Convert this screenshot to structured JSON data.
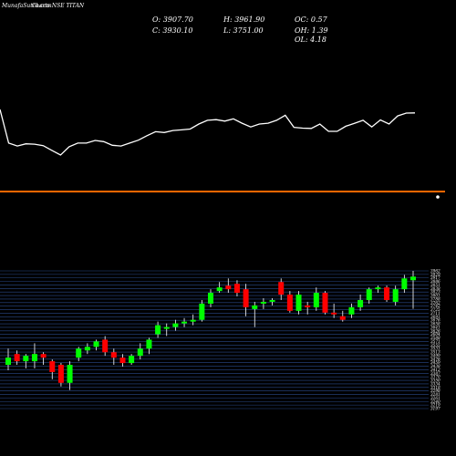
{
  "header": {
    "brand": "MunafaSutra.com",
    "title": "Charts NSE TITAN",
    "open": "O: 3907.70",
    "high": "H: 3961.90",
    "oc": "OC: 0.57",
    "close": "C: 3930.10",
    "low": "L: 3751.00",
    "oh": "OH: 1.39",
    "ol": "OL: 4.18"
  },
  "colors": {
    "background": "#000000",
    "line": "#ffffff",
    "separator": "#ff6600",
    "bullish": "#00ff00",
    "bearish": "#ff0000",
    "grid": "#2a4a8a"
  },
  "chart_data": [
    {
      "type": "line",
      "title": "",
      "values": [
        3420,
        3190,
        3170,
        3185,
        3182,
        3172,
        3140,
        3108,
        3165,
        3190,
        3190,
        3208,
        3200,
        3175,
        3170,
        3190,
        3210,
        3240,
        3268,
        3262,
        3276,
        3280,
        3286,
        3320,
        3346,
        3350,
        3340,
        3356,
        3326,
        3300,
        3320,
        3326,
        3346,
        3380,
        3298,
        3292,
        3290,
        3320,
        3270,
        3270,
        3305,
        3325,
        3346,
        3300,
        3348,
        3320,
        3376,
        3395,
        3396
      ]
    },
    {
      "type": "candlestick",
      "title": "",
      "y_tick_labels": [
        "3962",
        "3929",
        "3917",
        "3886",
        "3851",
        "3838",
        "3823",
        "3801",
        "3788",
        "3762",
        "3742",
        "3725",
        "3711",
        "3691",
        "3676",
        "3658",
        "3641",
        "3626",
        "3604",
        "3588",
        "3571",
        "3555",
        "3531",
        "3513",
        "3499",
        "3476",
        "3459",
        "3438",
        "3412",
        "3387",
        "3370",
        "3350",
        "3334",
        "3318",
        "3298",
        "3281",
        "3261",
        "3240",
        "3219",
        "3197"
      ],
      "candles": [
        {
          "o": 3440,
          "h": 3530,
          "l": 3410,
          "c": 3480
        },
        {
          "o": 3500,
          "h": 3520,
          "l": 3440,
          "c": 3460
        },
        {
          "o": 3460,
          "h": 3500,
          "l": 3420,
          "c": 3490
        },
        {
          "o": 3460,
          "h": 3560,
          "l": 3420,
          "c": 3500
        },
        {
          "o": 3500,
          "h": 3510,
          "l": 3440,
          "c": 3480
        },
        {
          "o": 3460,
          "h": 3470,
          "l": 3360,
          "c": 3400
        },
        {
          "o": 3440,
          "h": 3450,
          "l": 3320,
          "c": 3340
        },
        {
          "o": 3340,
          "h": 3460,
          "l": 3300,
          "c": 3440
        },
        {
          "o": 3480,
          "h": 3540,
          "l": 3460,
          "c": 3530
        },
        {
          "o": 3520,
          "h": 3560,
          "l": 3500,
          "c": 3540
        },
        {
          "o": 3540,
          "h": 3580,
          "l": 3520,
          "c": 3570
        },
        {
          "o": 3580,
          "h": 3600,
          "l": 3490,
          "c": 3510
        },
        {
          "o": 3510,
          "h": 3530,
          "l": 3440,
          "c": 3480
        },
        {
          "o": 3480,
          "h": 3500,
          "l": 3430,
          "c": 3450
        },
        {
          "o": 3450,
          "h": 3500,
          "l": 3440,
          "c": 3490
        },
        {
          "o": 3490,
          "h": 3560,
          "l": 3470,
          "c": 3530
        },
        {
          "o": 3530,
          "h": 3590,
          "l": 3500,
          "c": 3580
        },
        {
          "o": 3610,
          "h": 3680,
          "l": 3590,
          "c": 3660
        },
        {
          "o": 3640,
          "h": 3670,
          "l": 3600,
          "c": 3650
        },
        {
          "o": 3650,
          "h": 3690,
          "l": 3630,
          "c": 3670
        },
        {
          "o": 3670,
          "h": 3700,
          "l": 3650,
          "c": 3680
        },
        {
          "o": 3680,
          "h": 3720,
          "l": 3660,
          "c": 3690
        },
        {
          "o": 3690,
          "h": 3800,
          "l": 3680,
          "c": 3780
        },
        {
          "o": 3780,
          "h": 3860,
          "l": 3760,
          "c": 3840
        },
        {
          "o": 3850,
          "h": 3900,
          "l": 3840,
          "c": 3870
        },
        {
          "o": 3880,
          "h": 3920,
          "l": 3840,
          "c": 3860
        },
        {
          "o": 3890,
          "h": 3910,
          "l": 3820,
          "c": 3840
        },
        {
          "o": 3860,
          "h": 3890,
          "l": 3710,
          "c": 3760
        },
        {
          "o": 3750,
          "h": 3790,
          "l": 3650,
          "c": 3770
        },
        {
          "o": 3780,
          "h": 3810,
          "l": 3750,
          "c": 3790
        },
        {
          "o": 3790,
          "h": 3810,
          "l": 3770,
          "c": 3800
        },
        {
          "o": 3900,
          "h": 3920,
          "l": 3800,
          "c": 3830
        },
        {
          "o": 3830,
          "h": 3850,
          "l": 3730,
          "c": 3740
        },
        {
          "o": 3740,
          "h": 3850,
          "l": 3720,
          "c": 3830
        },
        {
          "o": 3770,
          "h": 3790,
          "l": 3720,
          "c": 3760
        },
        {
          "o": 3760,
          "h": 3870,
          "l": 3740,
          "c": 3840
        },
        {
          "o": 3840,
          "h": 3850,
          "l": 3720,
          "c": 3730
        },
        {
          "o": 3730,
          "h": 3780,
          "l": 3700,
          "c": 3720
        },
        {
          "o": 3710,
          "h": 3740,
          "l": 3680,
          "c": 3690
        },
        {
          "o": 3720,
          "h": 3780,
          "l": 3700,
          "c": 3760
        },
        {
          "o": 3760,
          "h": 3830,
          "l": 3740,
          "c": 3800
        },
        {
          "o": 3800,
          "h": 3870,
          "l": 3780,
          "c": 3860
        },
        {
          "o": 3860,
          "h": 3880,
          "l": 3840,
          "c": 3870
        },
        {
          "o": 3870,
          "h": 3880,
          "l": 3790,
          "c": 3800
        },
        {
          "o": 3790,
          "h": 3880,
          "l": 3770,
          "c": 3860
        },
        {
          "o": 3860,
          "h": 3940,
          "l": 3840,
          "c": 3920
        },
        {
          "o": 3910,
          "h": 3962,
          "l": 3751,
          "c": 3930
        }
      ]
    }
  ]
}
